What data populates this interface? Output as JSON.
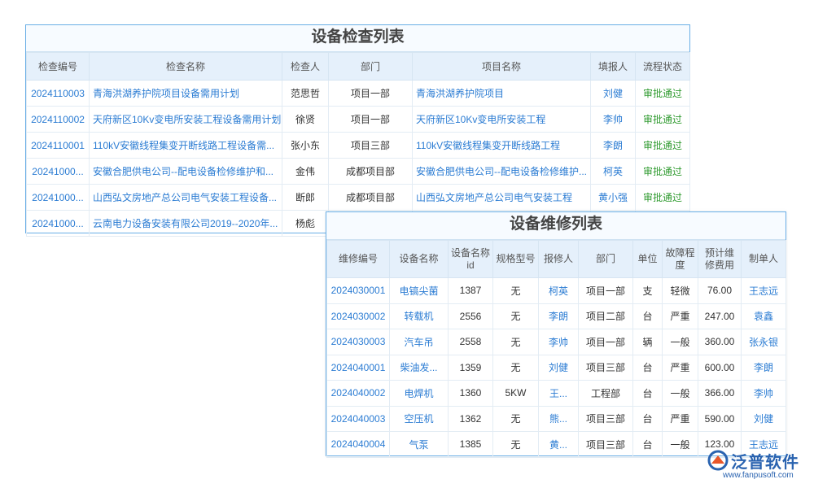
{
  "inspection_table": {
    "title": "设备检查列表",
    "headers": [
      "检查编号",
      "检查名称",
      "检查人",
      "部门",
      "项目名称",
      "填报人",
      "流程状态"
    ],
    "rows": [
      [
        "2024110003",
        "青海洪湖养护院项目设备需用计划",
        "范思哲",
        "项目一部",
        "青海洪湖养护院项目",
        "刘健",
        "审批通过"
      ],
      [
        "2024110002",
        "天府新区10Kv变电所安装工程设备需用计划",
        "徐贤",
        "项目一部",
        "天府新区10Kv变电所安装工程",
        "李帅",
        "审批通过"
      ],
      [
        "2024110001",
        "110kV安徽线程集变开断线路工程设备需...",
        "张小东",
        "项目三部",
        "110kV安徽线程集变开断线路工程",
        "李朗",
        "审批通过"
      ],
      [
        "20241000...",
        "安徽合肥供电公司--配电设备检修维护和...",
        "金伟",
        "成都项目部",
        "安徽合肥供电公司--配电设备检修维护...",
        "柯英",
        "审批通过"
      ],
      [
        "20241000...",
        "山西弘文房地产总公司电气安装工程设备...",
        "断郎",
        "成都项目部",
        "山西弘文房地产总公司电气安装工程",
        "黄小强",
        "审批通过"
      ],
      [
        "20241000...",
        "云南电力设备安装有限公司2019--2020年...",
        "杨彪"
      ]
    ]
  },
  "repair_table": {
    "title": "设备维修列表",
    "headers": [
      "维修编号",
      "设备名称",
      "设备名称id",
      "规格型号",
      "报修人",
      "部门",
      "单位",
      "故障程度",
      "预计维修费用",
      "制单人"
    ],
    "rows": [
      [
        "2024030001",
        "电镐尖菌",
        "1387",
        "无",
        "柯英",
        "项目一部",
        "支",
        "轻微",
        "76.00",
        "王志远"
      ],
      [
        "2024030002",
        "转载机",
        "2556",
        "无",
        "李朗",
        "项目二部",
        "台",
        "严重",
        "247.00",
        "袁鑫"
      ],
      [
        "2024030003",
        "汽车吊",
        "2558",
        "无",
        "李帅",
        "项目一部",
        "辆",
        "一般",
        "360.00",
        "张永银"
      ],
      [
        "2024040001",
        "柴油发...",
        "1359",
        "无",
        "刘健",
        "项目三部",
        "台",
        "严重",
        "600.00",
        "李朗"
      ],
      [
        "2024040002",
        "电焊机",
        "1360",
        "5KW",
        "王...",
        "工程部",
        "台",
        "一般",
        "366.00",
        "李帅"
      ],
      [
        "2024040003",
        "空压机",
        "1362",
        "无",
        "熊...",
        "项目三部",
        "台",
        "严重",
        "590.00",
        "刘健"
      ],
      [
        "2024040004",
        "气泵",
        "1385",
        "无",
        "黄...",
        "项目三部",
        "台",
        "一般",
        "123.00",
        "王志远"
      ]
    ]
  },
  "logo": {
    "name": "泛普软件",
    "url": "www.fanpusoft.com"
  }
}
